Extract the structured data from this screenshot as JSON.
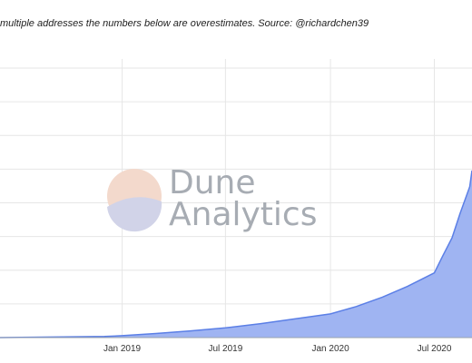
{
  "chart_data": {
    "type": "area",
    "subtitle": "multiple addresses the numbers below are overestimates. Source: @richardchen39",
    "watermark": {
      "line1": "Dune",
      "line2": "Analytics"
    },
    "x_ticks": [
      "Jan 2019",
      "Jul 2019",
      "Jan 2020",
      "Jul 2020"
    ],
    "x_tick_values": [
      "2019-01-01",
      "2019-07-01",
      "2020-01-01",
      "2020-07-01"
    ],
    "x_range": [
      "2018-06-01",
      "2020-09-05"
    ],
    "y_range": [
      0,
      100
    ],
    "grid": true,
    "colors": {
      "fill": "#9fb4f2",
      "line": "#5b7fe6",
      "grid": "#e6e6e6",
      "axis": "#9aa3ad"
    },
    "series": [
      {
        "x": [
          "2018-06-01",
          "2018-09-01",
          "2018-12-01",
          "2019-01-01",
          "2019-03-01",
          "2019-05-01",
          "2019-07-01",
          "2019-09-01",
          "2019-11-01",
          "2020-01-01",
          "2020-02-15",
          "2020-04-01",
          "2020-05-15",
          "2020-07-01",
          "2020-07-15",
          "2020-08-01",
          "2020-08-15",
          "2020-09-01",
          "2020-09-05"
        ],
        "values": [
          0,
          0.2,
          0.4,
          0.7,
          1.5,
          2.5,
          3.6,
          5.2,
          7.0,
          8.8,
          11.5,
          15,
          19,
          24,
          30,
          37,
          46,
          56,
          62
        ]
      }
    ]
  }
}
